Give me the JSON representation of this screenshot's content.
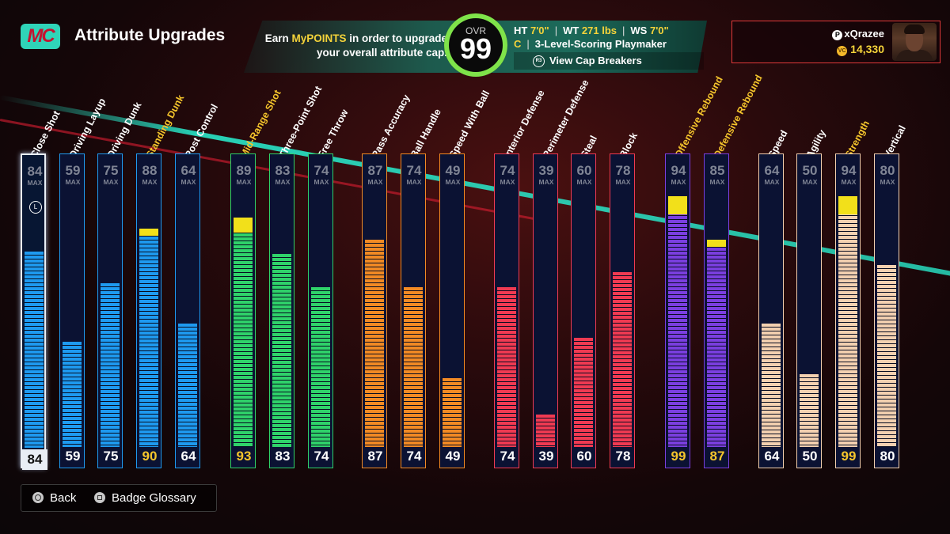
{
  "header": {
    "logo_text": "MC",
    "title": "Attribute Upgrades",
    "earn_pre": "Earn ",
    "earn_hl": "MyPOINTS",
    "earn_post": " in order to upgrade",
    "earn_line2": "your overall attribute cap.",
    "ovr_label": "OVR",
    "ovr_value": "99",
    "ht_label": "HT",
    "ht_value": "7'0\"",
    "wt_label": "WT",
    "wt_value": "271 lbs",
    "ws_label": "WS",
    "ws_value": "7'0\"",
    "position": "C",
    "archetype": "3-Level-Scoring Playmaker",
    "cap_button_icon": "R3",
    "cap_button": "View Cap Breakers"
  },
  "user": {
    "platform_icon": "playstation-icon",
    "username": "xQrazee",
    "vc_icon": "VC",
    "vc": "14,330"
  },
  "max_label": "MAX",
  "attributes": [
    {
      "name": "Close Shot",
      "max": "84",
      "current": "84",
      "fill": 0.84,
      "color": "#1e9af0",
      "capped": false,
      "gold": false,
      "selected": true
    },
    {
      "name": "Driving Layup",
      "max": "59",
      "current": "59",
      "fill": 0.59,
      "color": "#1e9af0",
      "capped": false,
      "gold": false
    },
    {
      "name": "Driving Dunk",
      "max": "75",
      "current": "75",
      "fill": 0.75,
      "color": "#1e9af0",
      "capped": false,
      "gold": false
    },
    {
      "name": "Standing Dunk",
      "max": "88",
      "current": "90",
      "fill": 0.9,
      "color": "#1e9af0",
      "capped": true,
      "gold": true
    },
    {
      "name": "Post Control",
      "max": "64",
      "current": "64",
      "fill": 0.64,
      "color": "#1e9af0",
      "capped": false,
      "gold": false
    },
    {
      "name": "Mid-Range Shot",
      "max": "89",
      "current": "93",
      "fill": 0.93,
      "color": "#2fd26a",
      "capped": true,
      "gold": true
    },
    {
      "name": "Three-Point Shot",
      "max": "83",
      "current": "83",
      "fill": 0.83,
      "color": "#2fd26a",
      "capped": false,
      "gold": false
    },
    {
      "name": "Free Throw",
      "max": "74",
      "current": "74",
      "fill": 0.74,
      "color": "#2fd26a",
      "capped": false,
      "gold": false
    },
    {
      "name": "Pass Accuracy",
      "max": "87",
      "current": "87",
      "fill": 0.87,
      "color": "#f28a24",
      "capped": false,
      "gold": false
    },
    {
      "name": "Ball Handle",
      "max": "74",
      "current": "74",
      "fill": 0.74,
      "color": "#f28a24",
      "capped": false,
      "gold": false
    },
    {
      "name": "Speed With Ball",
      "max": "49",
      "current": "49",
      "fill": 0.49,
      "color": "#f28a24",
      "capped": false,
      "gold": false
    },
    {
      "name": "Interior Defense",
      "max": "74",
      "current": "74",
      "fill": 0.74,
      "color": "#f03a52",
      "capped": false,
      "gold": false
    },
    {
      "name": "Perimeter Defense",
      "max": "39",
      "current": "39",
      "fill": 0.39,
      "color": "#f03a52",
      "capped": false,
      "gold": false
    },
    {
      "name": "Steal",
      "max": "60",
      "current": "60",
      "fill": 0.6,
      "color": "#f03a52",
      "capped": false,
      "gold": false
    },
    {
      "name": "Block",
      "max": "78",
      "current": "78",
      "fill": 0.78,
      "color": "#f03a52",
      "capped": false,
      "gold": false
    },
    {
      "name": "Offensive Rebound",
      "max": "94",
      "current": "99",
      "fill": 0.99,
      "color": "#7b3fe0",
      "capped": true,
      "gold": true
    },
    {
      "name": "Defensive Rebound",
      "max": "85",
      "current": "87",
      "fill": 0.87,
      "color": "#7b3fe0",
      "capped": true,
      "gold": true
    },
    {
      "name": "Speed",
      "max": "64",
      "current": "64",
      "fill": 0.64,
      "color": "#f3d0b0",
      "capped": false,
      "gold": false
    },
    {
      "name": "Agility",
      "max": "50",
      "current": "50",
      "fill": 0.5,
      "color": "#f3d0b0",
      "capped": false,
      "gold": false
    },
    {
      "name": "Strength",
      "max": "94",
      "current": "99",
      "fill": 0.99,
      "color": "#f3d0b0",
      "capped": true,
      "gold": true
    },
    {
      "name": "Vertical",
      "max": "80",
      "current": "80",
      "fill": 0.8,
      "color": "#f3d0b0",
      "capped": false,
      "gold": false
    }
  ],
  "footer": {
    "back_icon": "circle-button-icon",
    "back": "Back",
    "glossary_icon": "square-button-icon",
    "glossary": "Badge Glossary"
  }
}
